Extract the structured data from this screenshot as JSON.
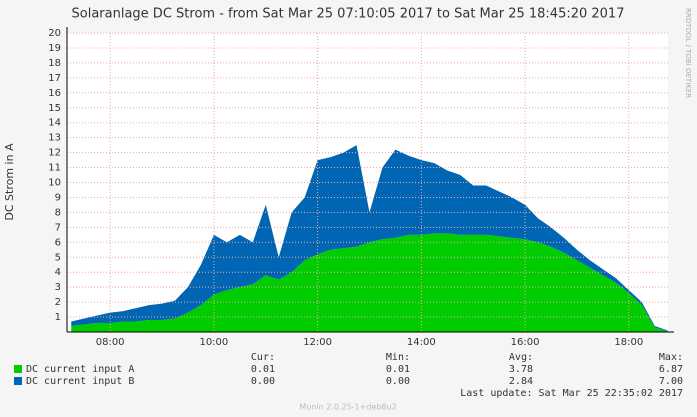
{
  "chart_data": {
    "type": "area",
    "stacked": true,
    "title": "Solaranlage DC Strom - from Sat Mar 25 07:10:05 2017 to Sat Mar 25 18:45:20 2017",
    "ylabel": "DC Strom in A",
    "side_text": "RRDTOOL / TOBI OETIKER",
    "footer": "Munin 2.0.25-1+deb8u2",
    "last_update": "Last update: Sat Mar 25 22:35:02 2017",
    "grid": true,
    "xlim": [
      7.1681,
      18.7556
    ],
    "xticks": [
      {
        "value": 8,
        "label": "08:00"
      },
      {
        "value": 10,
        "label": "10:00"
      },
      {
        "value": 12,
        "label": "12:00"
      },
      {
        "value": 14,
        "label": "14:00"
      },
      {
        "value": 16,
        "label": "16:00"
      },
      {
        "value": 18,
        "label": "18:00"
      }
    ],
    "ylim": [
      0,
      20
    ],
    "yticks": [
      1,
      2,
      3,
      4,
      5,
      6,
      7,
      8,
      9,
      10,
      11,
      12,
      13,
      14,
      15,
      16,
      17,
      18,
      19,
      20
    ],
    "x": [
      7.25,
      7.5,
      7.75,
      8,
      8.25,
      8.5,
      8.75,
      9,
      9.25,
      9.5,
      9.75,
      10,
      10.25,
      10.5,
      10.75,
      11,
      11.25,
      11.5,
      11.75,
      12,
      12.25,
      12.5,
      12.75,
      13,
      13.25,
      13.5,
      13.75,
      14,
      14.25,
      14.5,
      14.75,
      15,
      15.25,
      15.5,
      15.75,
      16,
      16.25,
      16.5,
      16.75,
      17,
      17.25,
      17.5,
      17.75,
      18,
      18.25,
      18.5,
      18.75
    ],
    "legend_columns": [
      "Cur:",
      "Min:",
      "Avg:",
      "Max:"
    ],
    "series": [
      {
        "name": "DC current input A",
        "color": "#00cc00",
        "stats": [
          "0.01",
          "0.01",
          "3.78",
          "6.87"
        ],
        "values": [
          0.4,
          0.5,
          0.6,
          0.6,
          0.7,
          0.7,
          0.8,
          0.8,
          0.9,
          1.3,
          1.8,
          2.5,
          2.8,
          3.0,
          3.2,
          3.8,
          3.5,
          4.0,
          4.8,
          5.2,
          5.5,
          5.6,
          5.7,
          6.0,
          6.2,
          6.3,
          6.5,
          6.5,
          6.6,
          6.6,
          6.5,
          6.5,
          6.5,
          6.4,
          6.3,
          6.2,
          6.0,
          5.7,
          5.3,
          4.8,
          4.3,
          3.8,
          3.3,
          2.6,
          1.8,
          0.3,
          0.05
        ]
      },
      {
        "name": "DC current input B",
        "color": "#0066b3",
        "stats": [
          "0.00",
          "0.00",
          "2.84",
          "7.00"
        ],
        "values": [
          0.3,
          0.4,
          0.5,
          0.7,
          0.7,
          0.9,
          1.0,
          1.1,
          1.2,
          1.7,
          2.7,
          4.0,
          3.2,
          3.5,
          2.8,
          4.7,
          1.5,
          4.0,
          4.2,
          6.3,
          6.2,
          6.4,
          6.8,
          2.0,
          4.8,
          5.9,
          5.3,
          5.0,
          4.7,
          4.2,
          4.0,
          3.3,
          3.3,
          3.0,
          2.7,
          2.3,
          1.6,
          1.3,
          1.0,
          0.7,
          0.5,
          0.4,
          0.3,
          0.2,
          0.2,
          0.1,
          0.05
        ]
      }
    ]
  }
}
